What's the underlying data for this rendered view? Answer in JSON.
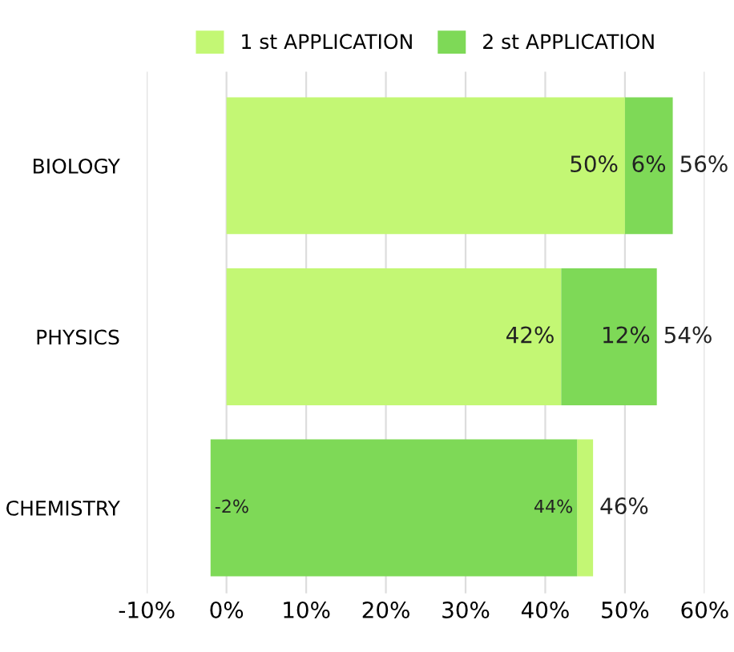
{
  "chart_data": {
    "type": "bar",
    "orientation": "horizontal",
    "categories": [
      "BIOLOGY",
      "PHYSICS",
      "CHEMISTRY"
    ],
    "series": [
      {
        "name": "1 st APPLICATION",
        "color": "#c3f774",
        "values": [
          50,
          42,
          2
        ],
        "base": [
          0,
          0,
          44
        ],
        "value_labels": [
          "50%",
          "42%",
          null
        ]
      },
      {
        "name": "2 st APPLICATION",
        "color": "#7ed957",
        "values": [
          6,
          12,
          46
        ],
        "base": [
          50,
          42,
          -2
        ],
        "value_labels": [
          "6%",
          "12%",
          null
        ]
      }
    ],
    "totals": [
      "56%",
      "54%",
      null
    ],
    "annotations": [
      {
        "text": "-2%",
        "x": -2,
        "y": "CHEMISTRY"
      },
      {
        "text": "44%",
        "x": 44,
        "y": "CHEMISTRY"
      },
      {
        "text": "46%",
        "x": 46,
        "y": "CHEMISTRY"
      }
    ],
    "xlim": [
      -10,
      60
    ],
    "xticks": [
      {
        "value": -10,
        "label": "-10%"
      },
      {
        "value": 0,
        "label": "0%"
      },
      {
        "value": 10,
        "label": "10%"
      },
      {
        "value": 20,
        "label": "20%"
      },
      {
        "value": 30,
        "label": "30%"
      },
      {
        "value": 40,
        "label": "40%"
      },
      {
        "value": 50,
        "label": "50%"
      },
      {
        "value": 60,
        "label": "60%"
      }
    ],
    "grid": "x",
    "legend": "top"
  }
}
